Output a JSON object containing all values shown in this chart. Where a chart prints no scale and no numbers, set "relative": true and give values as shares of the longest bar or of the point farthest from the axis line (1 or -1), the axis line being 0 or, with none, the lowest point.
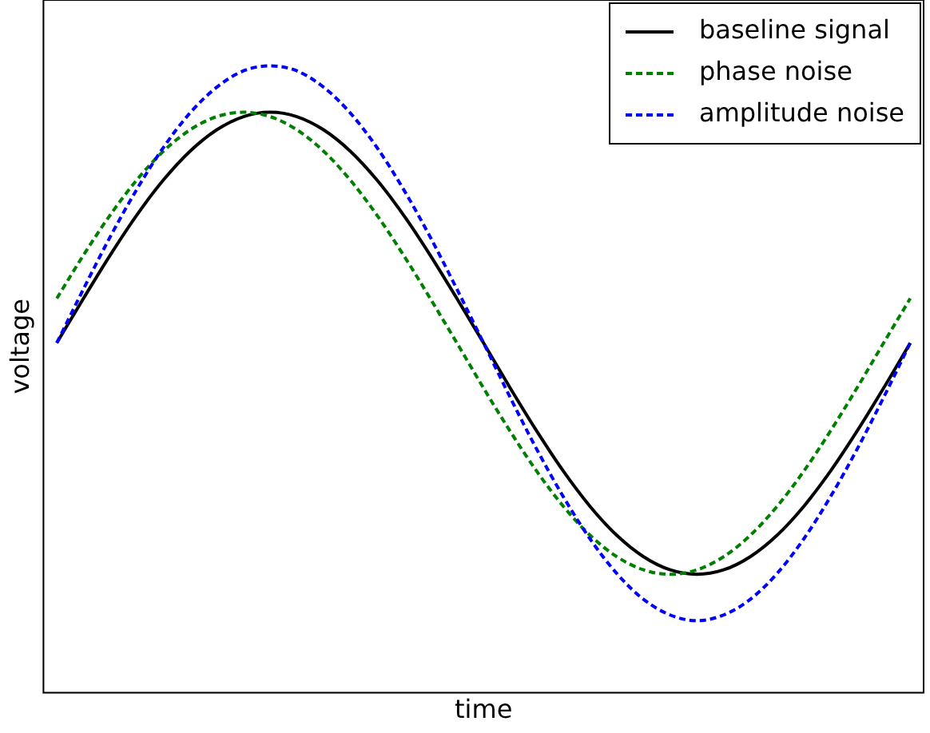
{
  "chart_data": {
    "type": "line",
    "xlabel": "time",
    "ylabel": "voltage",
    "relative": true,
    "grid": false,
    "legend": "top right",
    "marker": "none",
    "categories": [
      null,
      null,
      null,
      null,
      null,
      null,
      null,
      null,
      null,
      null,
      null,
      null,
      null,
      null,
      null,
      null,
      null,
      null,
      null,
      null,
      null,
      null,
      null,
      null,
      null,
      null,
      null,
      null,
      null,
      null,
      null,
      null,
      null
    ],
    "series": [
      {
        "name": "baseline signal",
        "color": "#000000",
        "line_style": "solid",
        "values": [
          0.558,
          0.629,
          0.698,
          0.762,
          0.818,
          0.864,
          0.898,
          0.919,
          0.926,
          0.919,
          0.898,
          0.864,
          0.818,
          0.762,
          0.698,
          0.629,
          0.558,
          0.486,
          0.417,
          0.353,
          0.297,
          0.251,
          0.217,
          0.196,
          0.189,
          0.196,
          0.217,
          0.251,
          0.297,
          0.353,
          0.417,
          0.486,
          0.558
        ]
      },
      {
        "name": "phase noise",
        "color": "#008000",
        "line_style": "dashed",
        "values": [
          0.629,
          0.698,
          0.762,
          0.818,
          0.864,
          0.898,
          0.919,
          0.926,
          0.919,
          0.898,
          0.864,
          0.818,
          0.762,
          0.698,
          0.629,
          0.558,
          0.486,
          0.417,
          0.353,
          0.297,
          0.251,
          0.217,
          0.196,
          0.189,
          0.196,
          0.217,
          0.251,
          0.297,
          0.353,
          0.417,
          0.486,
          0.558,
          0.629
        ]
      },
      {
        "name": "amplitude noise",
        "color": "#0000ff",
        "line_style": "dashed",
        "values": [
          0.558,
          0.644,
          0.727,
          0.803,
          0.87,
          0.925,
          0.966,
          0.992,
          1,
          0.992,
          0.966,
          0.925,
          0.87,
          0.803,
          0.727,
          0.644,
          0.558,
          0.471,
          0.388,
          0.312,
          0.245,
          0.19,
          0.149,
          0.124,
          0.115,
          0.124,
          0.149,
          0.19,
          0.245,
          0.312,
          0.388,
          0.471,
          0.558
        ]
      }
    ]
  }
}
